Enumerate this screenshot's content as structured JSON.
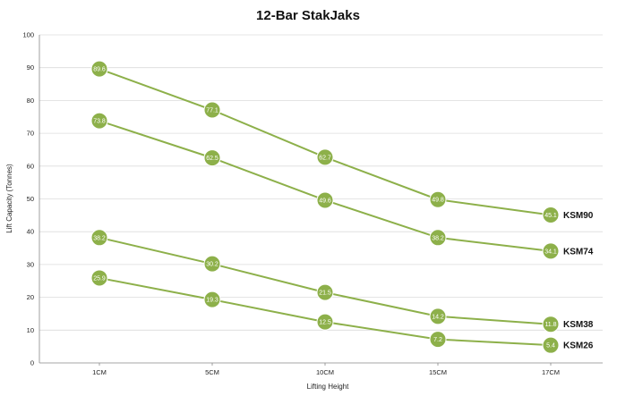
{
  "chart_data": {
    "type": "line",
    "title": "12-Bar StakJaks",
    "xlabel": "Lifting Height",
    "ylabel": "Lift Capacity (Tonnes)",
    "categories": [
      "1CM",
      "5CM",
      "10CM",
      "15CM",
      "17CM"
    ],
    "ylim": [
      0,
      100
    ],
    "yticks": [
      0,
      10,
      20,
      30,
      40,
      50,
      60,
      70,
      80,
      90,
      100
    ],
    "grid": true,
    "line_color": "#8db04a",
    "marker_color": "#8db04a",
    "series": [
      {
        "name": "KSM90",
        "values": [
          89.6,
          77.1,
          62.7,
          49.8,
          45.1
        ],
        "point_labels": [
          "89.6",
          "77.1",
          "62.7",
          "49.8",
          "45.1"
        ]
      },
      {
        "name": "KSM74",
        "values": [
          73.8,
          62.5,
          49.6,
          38.2,
          34.1
        ],
        "point_labels": [
          "73.8",
          "62.5",
          "49.6",
          "38.2",
          "34.1"
        ]
      },
      {
        "name": "KSM38",
        "values": [
          38.2,
          30.2,
          21.5,
          14.2,
          11.8
        ],
        "point_labels": [
          "38.2",
          "30.2",
          "21.5",
          "14.2",
          "11.8"
        ]
      },
      {
        "name": "KSM26",
        "values": [
          25.9,
          19.3,
          12.5,
          7.2,
          5.4
        ],
        "point_labels": [
          "25.9",
          "19.3",
          "12.5",
          "7.2",
          "5.4"
        ]
      }
    ]
  }
}
